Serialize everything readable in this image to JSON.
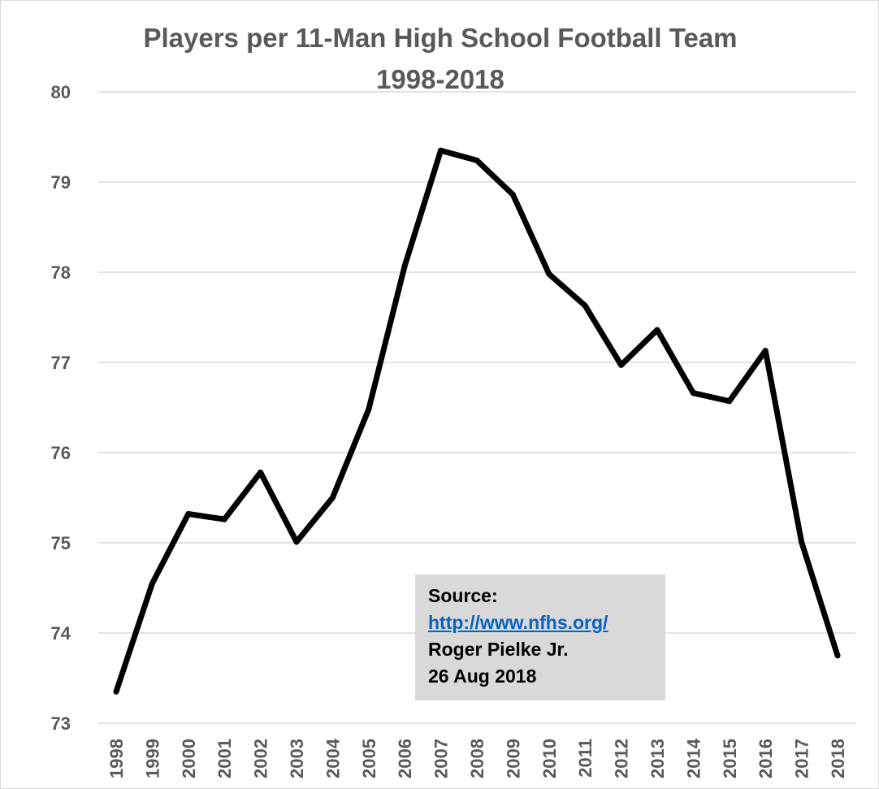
{
  "chart_data": {
    "type": "line",
    "title": "Players per 11-Man High School Football Team",
    "subtitle": "1998-2018",
    "xlabel": "",
    "ylabel": "",
    "ylim": [
      73,
      80
    ],
    "yticks": [
      "73",
      "74",
      "75",
      "76",
      "77",
      "78",
      "79",
      "80"
    ],
    "grid": true,
    "categories": [
      "1998",
      "1999",
      "2000",
      "2001",
      "2002",
      "2003",
      "2004",
      "2005",
      "2006",
      "2007",
      "2008",
      "2009",
      "2010",
      "2011",
      "2012",
      "2013",
      "2014",
      "2015",
      "2016",
      "2017",
      "2018"
    ],
    "series": [
      {
        "color": "#000000",
        "values": [
          73.35,
          74.55,
          75.32,
          75.26,
          75.78,
          75.01,
          75.5,
          76.48,
          78.07,
          79.35,
          79.24,
          78.86,
          77.98,
          77.63,
          76.97,
          77.36,
          76.66,
          76.57,
          77.13,
          75.01,
          73.75
        ]
      }
    ],
    "annotation": {
      "label": "Source:",
      "link": "http://www.nfhs.org/",
      "author": "Roger Pielke Jr.",
      "date": "26 Aug 2018"
    },
    "colors": {
      "line": "#000000",
      "grid": "#d9d9d9",
      "text": "#595959",
      "annotation_bg": "#d9d9d9",
      "link": "#0563c1"
    }
  }
}
